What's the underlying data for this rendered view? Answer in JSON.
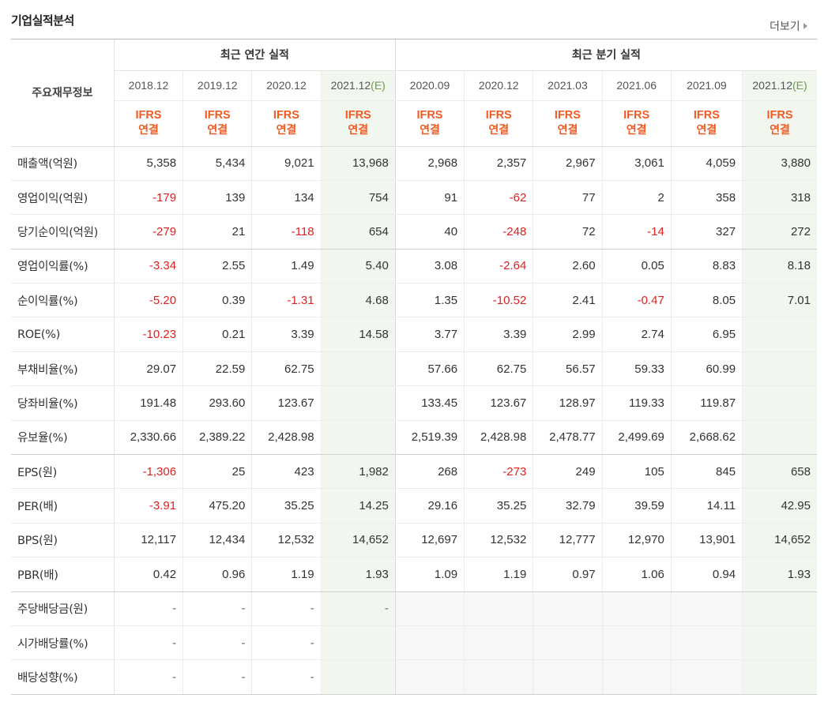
{
  "header": {
    "title": "기업실적분석",
    "more_label": "더보기"
  },
  "table": {
    "label_column_header": "주요재무정보",
    "annual_group_label": "최근 연간 실적",
    "quarterly_group_label": "최근 분기 실적",
    "annual_periods": [
      "2018.12",
      "2019.12",
      "2020.12",
      "2021.12"
    ],
    "annual_estimate_suffix": "(E)",
    "quarterly_periods": [
      "2020.09",
      "2020.12",
      "2021.03",
      "2021.06",
      "2021.09",
      "2021.12"
    ],
    "quarterly_estimate_suffix": "(E)",
    "basis_line1": "IFRS",
    "basis_line2": "연결",
    "rows": [
      {
        "label": "매출액(억원)",
        "values": [
          "5,358",
          "5,434",
          "9,021",
          "13,968",
          "2,968",
          "2,357",
          "2,967",
          "3,061",
          "4,059",
          "3,880"
        ]
      },
      {
        "label": "영업이익(억원)",
        "values": [
          "-179",
          "139",
          "134",
          "754",
          "91",
          "-62",
          "77",
          "2",
          "358",
          "318"
        ]
      },
      {
        "label": "당기순이익(억원)",
        "values": [
          "-279",
          "21",
          "-118",
          "654",
          "40",
          "-248",
          "72",
          "-14",
          "327",
          "272"
        ]
      },
      {
        "label": "영업이익률(%)",
        "values": [
          "-3.34",
          "2.55",
          "1.49",
          "5.40",
          "3.08",
          "-2.64",
          "2.60",
          "0.05",
          "8.83",
          "8.18"
        ]
      },
      {
        "label": "순이익률(%)",
        "values": [
          "-5.20",
          "0.39",
          "-1.31",
          "4.68",
          "1.35",
          "-10.52",
          "2.41",
          "-0.47",
          "8.05",
          "7.01"
        ]
      },
      {
        "label": "ROE(%)",
        "values": [
          "-10.23",
          "0.21",
          "3.39",
          "14.58",
          "3.77",
          "3.39",
          "2.99",
          "2.74",
          "6.95",
          ""
        ]
      },
      {
        "label": "부채비율(%)",
        "values": [
          "29.07",
          "22.59",
          "62.75",
          "",
          "57.66",
          "62.75",
          "56.57",
          "59.33",
          "60.99",
          ""
        ]
      },
      {
        "label": "당좌비율(%)",
        "values": [
          "191.48",
          "293.60",
          "123.67",
          "",
          "133.45",
          "123.67",
          "128.97",
          "119.33",
          "119.87",
          ""
        ]
      },
      {
        "label": "유보율(%)",
        "values": [
          "2,330.66",
          "2,389.22",
          "2,428.98",
          "",
          "2,519.39",
          "2,428.98",
          "2,478.77",
          "2,499.69",
          "2,668.62",
          ""
        ]
      },
      {
        "label": "EPS(원)",
        "values": [
          "-1,306",
          "25",
          "423",
          "1,982",
          "268",
          "-273",
          "249",
          "105",
          "845",
          "658"
        ]
      },
      {
        "label": "PER(배)",
        "values": [
          "-3.91",
          "475.20",
          "35.25",
          "14.25",
          "29.16",
          "35.25",
          "32.79",
          "39.59",
          "14.11",
          "42.95"
        ]
      },
      {
        "label": "BPS(원)",
        "values": [
          "12,117",
          "12,434",
          "12,532",
          "14,652",
          "12,697",
          "12,532",
          "12,777",
          "12,970",
          "13,901",
          "14,652"
        ]
      },
      {
        "label": "PBR(배)",
        "values": [
          "0.42",
          "0.96",
          "1.19",
          "1.93",
          "1.09",
          "1.19",
          "0.97",
          "1.06",
          "0.94",
          "1.93"
        ]
      },
      {
        "label": "주당배당금(원)",
        "values": [
          "-",
          "-",
          "-",
          "-",
          "",
          "",
          "",
          "",
          "",
          ""
        ]
      },
      {
        "label": "시가배당률(%)",
        "values": [
          "-",
          "-",
          "-",
          "",
          "",
          "",
          "",
          "",
          "",
          ""
        ]
      },
      {
        "label": "배당성향(%)",
        "values": [
          "-",
          "-",
          "-",
          "",
          "",
          "",
          "",
          "",
          "",
          ""
        ]
      }
    ]
  },
  "colors": {
    "negative": "#e02020",
    "basis_text": "#f15a22",
    "estimate_text": "#6b9c4e",
    "estimate_column_bg": "#f1f6ef"
  }
}
